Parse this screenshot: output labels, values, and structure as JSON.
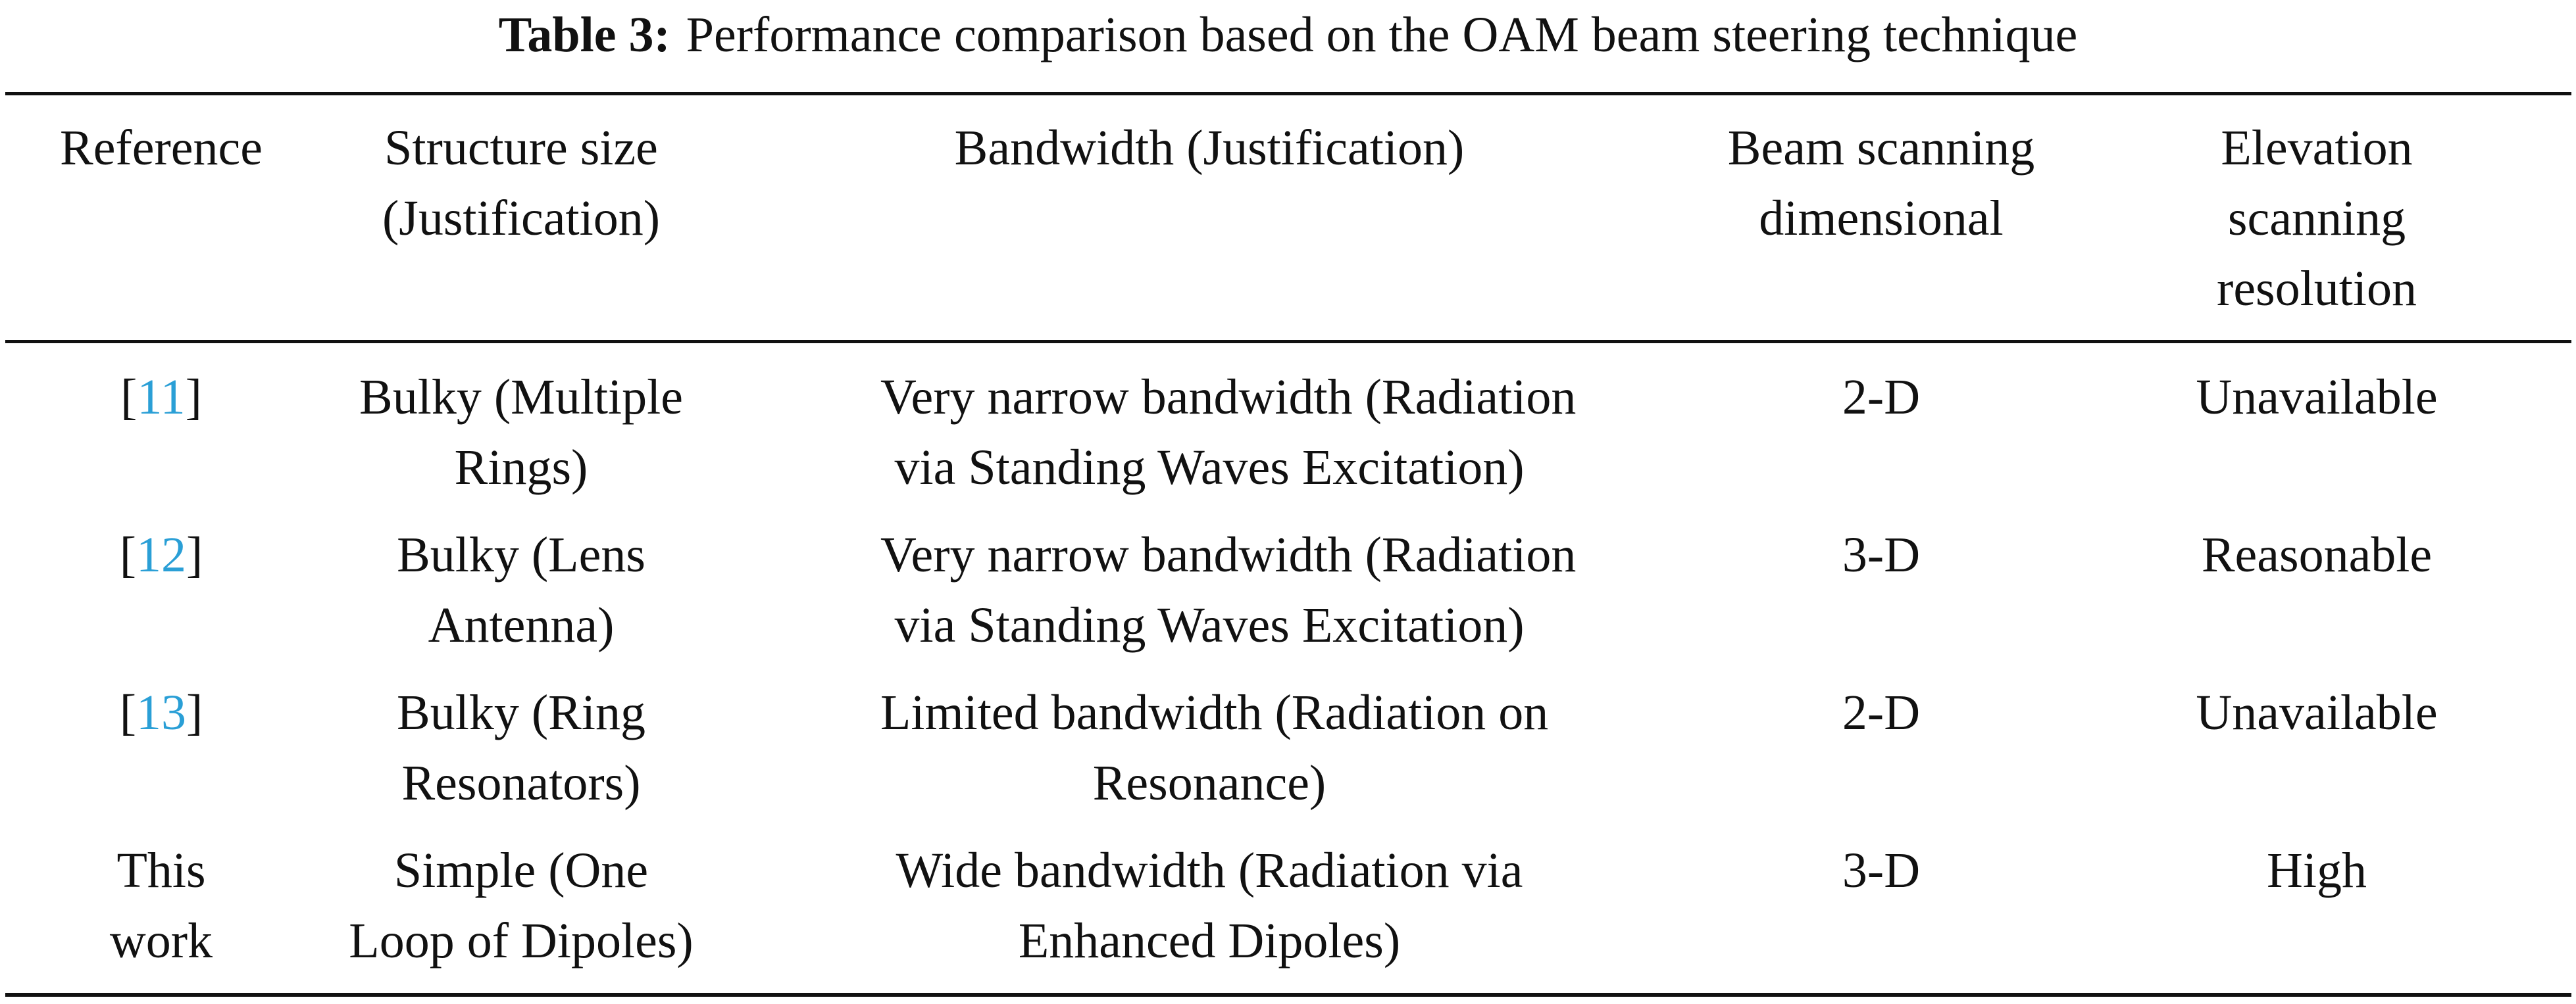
{
  "caption": {
    "label": "Table 3:",
    "text": "Performance comparison based on the OAM beam steering technique"
  },
  "table": {
    "header": [
      [
        "Reference"
      ],
      [
        "Structure size",
        "(Justification)"
      ],
      [
        "Bandwidth (Justification)"
      ],
      [
        "Beam scanning",
        "dimensional"
      ],
      [
        "Elevation",
        "scanning",
        "resolution"
      ]
    ],
    "rows": [
      {
        "reference": {
          "prefix": "[",
          "label": "11",
          "suffix": "]"
        },
        "cells": [
          [
            "Bulky (Multiple",
            "Rings)"
          ],
          [
            "Very narrow bandwidth (Radiation",
            "via Standing Waves Excitation)"
          ],
          [
            "2-D"
          ],
          [
            "Unavailable"
          ]
        ]
      },
      {
        "reference": {
          "prefix": "[",
          "label": "12",
          "suffix": "]"
        },
        "cells": [
          [
            "Bulky (Lens",
            "Antenna)"
          ],
          [
            "Very narrow bandwidth (Radiation",
            "via Standing Waves Excitation)"
          ],
          [
            "3-D"
          ],
          [
            "Reasonable"
          ]
        ]
      },
      {
        "reference": {
          "prefix": "[",
          "label": "13",
          "suffix": "]"
        },
        "cells": [
          [
            "Bulky (Ring",
            "Resonators)"
          ],
          [
            "Limited bandwidth (Radiation on",
            "Resonance)"
          ],
          [
            "2-D"
          ],
          [
            "Unavailable"
          ]
        ]
      },
      {
        "reference": {
          "lines": [
            "This",
            "work"
          ]
        },
        "cells": [
          [
            "Simple (One",
            "Loop of Dipoles)"
          ],
          [
            "Wide bandwidth (Radiation via",
            "Enhanced Dipoles)"
          ],
          [
            "3-D"
          ],
          [
            "High"
          ]
        ]
      }
    ]
  }
}
